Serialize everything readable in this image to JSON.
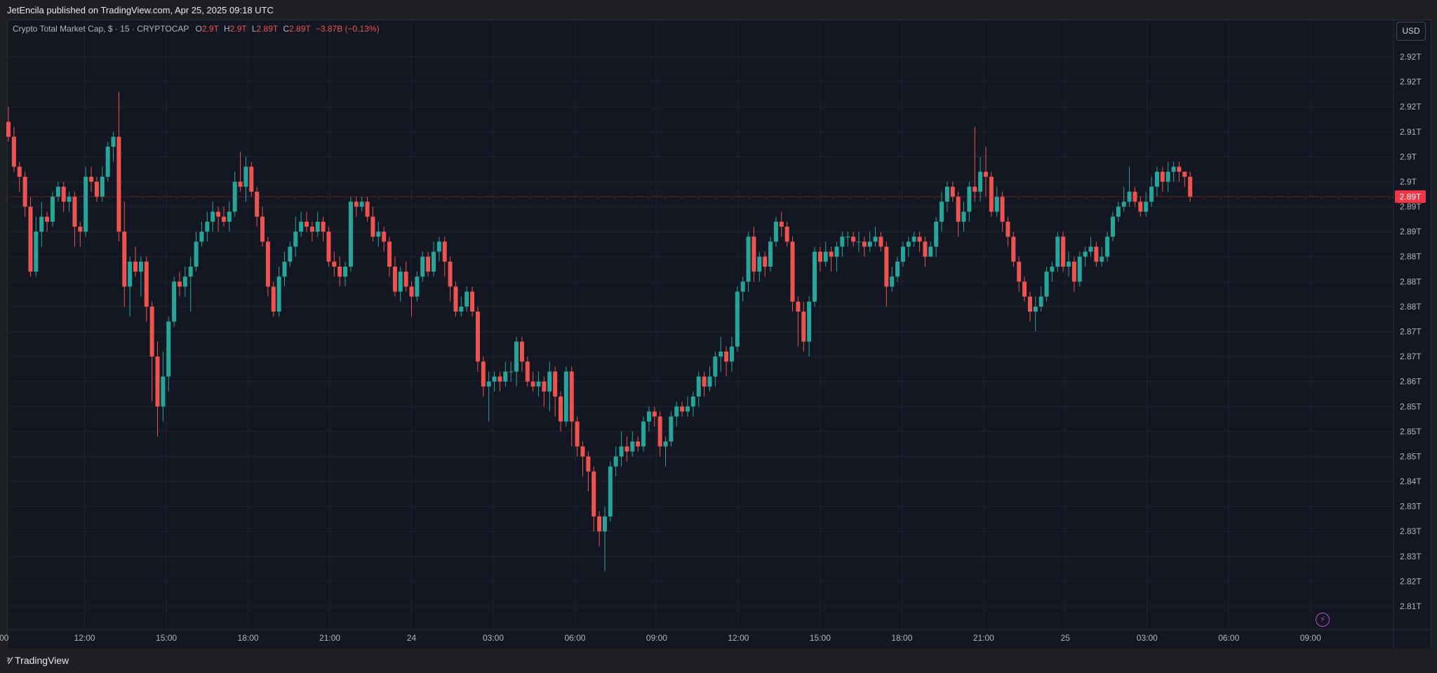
{
  "header": {
    "publisher_text": "JetEncila published on TradingView.com, Apr 25, 2025 09:18 UTC"
  },
  "legend": {
    "symbol": "Crypto Total Market Cap, $ · 15 · CRYPTOCAP",
    "open_label": "O",
    "open_value": "2.9T",
    "high_label": "H",
    "high_value": "2.9T",
    "low_label": "L",
    "low_value": "2.89T",
    "close_label": "C",
    "close_value": "2.89T",
    "change_value": "−3.87B (−0.13%)"
  },
  "currency_button": "USD",
  "brand": {
    "name": "TradingView"
  },
  "colors": {
    "up": "#26a69a",
    "down": "#ef5350",
    "background": "#131722",
    "grid": "#1f2430",
    "axis_text": "#b2b5be",
    "last_price": "#f23645"
  },
  "icons": {
    "flash": "lightning-icon",
    "logo": "tradingview-logo-icon"
  },
  "chart_data": {
    "type": "candlestick",
    "interval": "15",
    "x_tick_labels": [
      ":00",
      "12:00",
      "15:00",
      "18:00",
      "21:00",
      "24",
      "03:00",
      "06:00",
      "09:00",
      "12:00",
      "15:00",
      "18:00",
      "21:00",
      "25",
      "03:00",
      "06:00",
      "09:00"
    ],
    "y_tick_labels": [
      "2.92T",
      "2.92T",
      "2.92T",
      "2.91T",
      "2.9T",
      "2.9T",
      "2.89T",
      "2.89T",
      "2.88T",
      "2.88T",
      "2.88T",
      "2.87T",
      "2.87T",
      "2.86T",
      "2.85T",
      "2.85T",
      "2.85T",
      "2.84T",
      "2.83T",
      "2.83T",
      "2.83T",
      "2.82T",
      "2.81T"
    ],
    "y_tick_values": [
      2.9225,
      2.9175,
      2.9125,
      2.9075,
      2.9025,
      2.8975,
      2.8925,
      2.8875,
      2.8825,
      2.8775,
      2.8725,
      2.8675,
      2.8625,
      2.8575,
      2.8525,
      2.8475,
      2.8425,
      2.8375,
      2.8325,
      2.8275,
      2.8225,
      2.8175,
      2.8125
    ],
    "last_price_label": "2.89T",
    "last_price_value": 2.8945,
    "candles": [
      [
        2.9095,
        2.9065,
        2.9125,
        2.9055
      ],
      [
        2.9065,
        2.9005,
        2.9085,
        2.8995
      ],
      [
        2.9005,
        2.8985,
        2.9015,
        2.8955
      ],
      [
        2.8985,
        2.8925,
        2.8995,
        2.8905
      ],
      [
        2.8925,
        2.8795,
        2.8945,
        2.8785
      ],
      [
        2.8795,
        2.8875,
        2.8905,
        2.8785
      ],
      [
        2.8875,
        2.8905,
        2.8935,
        2.8845
      ],
      [
        2.8905,
        2.8895,
        2.8915,
        2.8875
      ],
      [
        2.8895,
        2.8945,
        2.8955,
        2.8885
      ],
      [
        2.8945,
        2.8965,
        2.8975,
        2.8935
      ],
      [
        2.8965,
        2.8935,
        2.8975,
        2.8915
      ],
      [
        2.8935,
        2.8945,
        2.8955,
        2.8915
      ],
      [
        2.8945,
        2.8885,
        2.8955,
        2.8845
      ],
      [
        2.8885,
        2.8875,
        2.8895,
        2.8845
      ],
      [
        2.8875,
        2.8985,
        2.9005,
        2.8865
      ],
      [
        2.8985,
        2.8975,
        2.9005,
        2.8955
      ],
      [
        2.8975,
        2.8945,
        2.8985,
        2.8935
      ],
      [
        2.8945,
        2.8985,
        2.9005,
        2.8935
      ],
      [
        2.8985,
        2.9045,
        2.9055,
        2.8975
      ],
      [
        2.9045,
        2.9065,
        2.9075,
        2.9015
      ],
      [
        2.9065,
        2.8875,
        2.9155,
        2.8855
      ],
      [
        2.8875,
        2.8765,
        2.8935,
        2.8725
      ],
      [
        2.8765,
        2.8815,
        2.8825,
        2.8705
      ],
      [
        2.8815,
        2.8795,
        2.8845,
        2.8785
      ],
      [
        2.8795,
        2.8815,
        2.8825,
        2.8745
      ],
      [
        2.8815,
        2.8725,
        2.8825,
        2.8695
      ],
      [
        2.8725,
        2.8625,
        2.8735,
        2.8535
      ],
      [
        2.8625,
        2.8525,
        2.8655,
        2.8465
      ],
      [
        2.8525,
        2.8585,
        2.8635,
        2.8495
      ],
      [
        2.8585,
        2.8695,
        2.8705,
        2.8555
      ],
      [
        2.8695,
        2.8775,
        2.8785,
        2.8685
      ],
      [
        2.8775,
        2.8765,
        2.8795,
        2.8745
      ],
      [
        2.8765,
        2.8785,
        2.8805,
        2.8745
      ],
      [
        2.8785,
        2.8805,
        2.8825,
        2.8715
      ],
      [
        2.8805,
        2.8855,
        2.8875,
        2.8795
      ],
      [
        2.8855,
        2.8875,
        2.8895,
        2.8845
      ],
      [
        2.8875,
        2.8895,
        2.8915,
        2.8855
      ],
      [
        2.8895,
        2.8915,
        2.8935,
        2.8875
      ],
      [
        2.8915,
        2.8905,
        2.8925,
        2.8875
      ],
      [
        2.8905,
        2.8895,
        2.8925,
        2.8885
      ],
      [
        2.8895,
        2.8915,
        2.8935,
        2.8875
      ],
      [
        2.8915,
        2.8975,
        2.8995,
        2.8905
      ],
      [
        2.8975,
        2.8965,
        2.9035,
        2.8955
      ],
      [
        2.8965,
        2.9005,
        2.9025,
        2.8935
      ],
      [
        2.9005,
        2.8955,
        2.9015,
        2.8945
      ],
      [
        2.8955,
        2.8905,
        2.8965,
        2.8885
      ],
      [
        2.8905,
        2.8855,
        2.8925,
        2.8845
      ],
      [
        2.8855,
        2.8765,
        2.8865,
        2.8745
      ],
      [
        2.8765,
        2.8715,
        2.8775,
        2.8705
      ],
      [
        2.8715,
        2.8785,
        2.8805,
        2.8705
      ],
      [
        2.8785,
        2.8815,
        2.8835,
        2.8765
      ],
      [
        2.8815,
        2.8845,
        2.8855,
        2.8805
      ],
      [
        2.8845,
        2.8875,
        2.8905,
        2.8825
      ],
      [
        2.8875,
        2.8895,
        2.8915,
        2.8865
      ],
      [
        2.8895,
        2.8885,
        2.8915,
        2.8875
      ],
      [
        2.8885,
        2.8875,
        2.8895,
        2.8855
      ],
      [
        2.8875,
        2.8895,
        2.8915,
        2.8865
      ],
      [
        2.8895,
        2.8875,
        2.8905,
        2.8855
      ],
      [
        2.8875,
        2.8815,
        2.8885,
        2.8805
      ],
      [
        2.8815,
        2.8805,
        2.8835,
        2.8785
      ],
      [
        2.8805,
        2.8785,
        2.8825,
        2.8765
      ],
      [
        2.8785,
        2.8805,
        2.8815,
        2.8765
      ],
      [
        2.8805,
        2.8935,
        2.8945,
        2.8795
      ],
      [
        2.8935,
        2.8925,
        2.8945,
        2.8905
      ],
      [
        2.8925,
        2.8935,
        2.8945,
        2.8915
      ],
      [
        2.8935,
        2.8905,
        2.8945,
        2.8895
      ],
      [
        2.8905,
        2.8865,
        2.8925,
        2.8855
      ],
      [
        2.8865,
        2.8875,
        2.8895,
        2.8845
      ],
      [
        2.8875,
        2.8855,
        2.8885,
        2.8835
      ],
      [
        2.8855,
        2.8805,
        2.8865,
        2.8785
      ],
      [
        2.8805,
        2.8755,
        2.8825,
        2.8745
      ],
      [
        2.8755,
        2.8795,
        2.8805,
        2.8735
      ],
      [
        2.8795,
        2.8765,
        2.8815,
        2.8755
      ],
      [
        2.8765,
        2.8745,
        2.8775,
        2.8705
      ],
      [
        2.8745,
        2.8785,
        2.8795,
        2.8735
      ],
      [
        2.8785,
        2.8825,
        2.8835,
        2.8775
      ],
      [
        2.8825,
        2.8795,
        2.8835,
        2.8785
      ],
      [
        2.8795,
        2.8835,
        2.8855,
        2.8785
      ],
      [
        2.8835,
        2.8855,
        2.8865,
        2.8815
      ],
      [
        2.8855,
        2.8815,
        2.8865,
        2.8785
      ],
      [
        2.8815,
        2.8765,
        2.8825,
        2.8735
      ],
      [
        2.8765,
        2.8715,
        2.8775,
        2.8705
      ],
      [
        2.8715,
        2.8725,
        2.8745,
        2.8705
      ],
      [
        2.8725,
        2.8755,
        2.8765,
        2.8715
      ],
      [
        2.8755,
        2.8715,
        2.8765,
        2.8705
      ],
      [
        2.8715,
        2.8615,
        2.8725,
        2.8595
      ],
      [
        2.8615,
        2.8565,
        2.8625,
        2.8545
      ],
      [
        2.8565,
        2.8575,
        2.8595,
        2.8495
      ],
      [
        2.8575,
        2.8585,
        2.8595,
        2.8555
      ],
      [
        2.8585,
        2.8575,
        2.8595,
        2.8555
      ],
      [
        2.8575,
        2.8595,
        2.8615,
        2.8565
      ],
      [
        2.8595,
        2.8595,
        2.8615,
        2.8575
      ],
      [
        2.8595,
        2.8655,
        2.8665,
        2.8565
      ],
      [
        2.8655,
        2.8615,
        2.8665,
        2.8595
      ],
      [
        2.8615,
        2.8575,
        2.8625,
        2.8565
      ],
      [
        2.8575,
        2.8565,
        2.8595,
        2.8555
      ],
      [
        2.8565,
        2.8575,
        2.8595,
        2.8545
      ],
      [
        2.8575,
        2.8555,
        2.8585,
        2.8525
      ],
      [
        2.8555,
        2.8595,
        2.8615,
        2.8515
      ],
      [
        2.8595,
        2.8545,
        2.8605,
        2.8505
      ],
      [
        2.8545,
        2.8495,
        2.8555,
        2.8475
      ],
      [
        2.8495,
        2.8595,
        2.8605,
        2.8485
      ],
      [
        2.8595,
        2.8495,
        2.8605,
        2.8445
      ],
      [
        2.8495,
        2.8445,
        2.8505,
        2.8425
      ],
      [
        2.8445,
        2.8425,
        2.8455,
        2.8385
      ],
      [
        2.8425,
        2.8395,
        2.8435,
        2.8355
      ],
      [
        2.8395,
        2.8305,
        2.8405,
        2.8275
      ],
      [
        2.8305,
        2.8275,
        2.8315,
        2.8245
      ],
      [
        2.8275,
        2.8305,
        2.8325,
        2.8195
      ],
      [
        2.8305,
        2.8405,
        2.8415,
        2.8295
      ],
      [
        2.8405,
        2.8425,
        2.8445,
        2.8385
      ],
      [
        2.8425,
        2.8445,
        2.8475,
        2.8405
      ],
      [
        2.8445,
        2.8435,
        2.8465,
        2.8415
      ],
      [
        2.8435,
        2.8455,
        2.8475,
        2.8425
      ],
      [
        2.8455,
        2.8445,
        2.8465,
        2.8435
      ],
      [
        2.8445,
        2.8495,
        2.8505,
        2.8435
      ],
      [
        2.8495,
        2.8515,
        2.8525,
        2.8475
      ],
      [
        2.8515,
        2.8505,
        2.8525,
        2.8485
      ],
      [
        2.8505,
        2.8445,
        2.8515,
        2.8425
      ],
      [
        2.8445,
        2.8455,
        2.8465,
        2.8405
      ],
      [
        2.8455,
        2.8505,
        2.8515,
        2.8445
      ],
      [
        2.8505,
        2.8525,
        2.8535,
        2.8485
      ],
      [
        2.8525,
        2.8515,
        2.8535,
        2.8505
      ],
      [
        2.8515,
        2.8525,
        2.8545,
        2.8505
      ],
      [
        2.8525,
        2.8545,
        2.8555,
        2.8505
      ],
      [
        2.8545,
        2.8585,
        2.8595,
        2.8525
      ],
      [
        2.8585,
        2.8565,
        2.8595,
        2.8545
      ],
      [
        2.8565,
        2.8585,
        2.8605,
        2.8555
      ],
      [
        2.8585,
        2.8625,
        2.8635,
        2.8565
      ],
      [
        2.8625,
        2.8635,
        2.8665,
        2.8595
      ],
      [
        2.8635,
        2.8615,
        2.8645,
        2.8585
      ],
      [
        2.8615,
        2.8645,
        2.8665,
        2.8595
      ],
      [
        2.8645,
        2.8755,
        2.8765,
        2.8635
      ],
      [
        2.8755,
        2.8775,
        2.8785,
        2.8735
      ],
      [
        2.8775,
        2.8865,
        2.8875,
        2.8755
      ],
      [
        2.8865,
        2.8795,
        2.8885,
        2.8775
      ],
      [
        2.8795,
        2.8825,
        2.8835,
        2.8775
      ],
      [
        2.8825,
        2.8805,
        2.8835,
        2.8785
      ],
      [
        2.8805,
        2.8855,
        2.8865,
        2.8795
      ],
      [
        2.8855,
        2.8895,
        2.8905,
        2.8845
      ],
      [
        2.8895,
        2.8885,
        2.8915,
        2.8865
      ],
      [
        2.8885,
        2.8855,
        2.8895,
        2.8845
      ],
      [
        2.8855,
        2.8735,
        2.8865,
        2.8715
      ],
      [
        2.8735,
        2.8715,
        2.8745,
        2.8645
      ],
      [
        2.8715,
        2.8655,
        2.8735,
        2.8635
      ],
      [
        2.8655,
        2.8735,
        2.8745,
        2.8625
      ],
      [
        2.8735,
        2.8835,
        2.8845,
        2.8725
      ],
      [
        2.8835,
        2.8815,
        2.8845,
        2.8795
      ],
      [
        2.8815,
        2.8835,
        2.8855,
        2.8805
      ],
      [
        2.8835,
        2.8825,
        2.8845,
        2.8795
      ],
      [
        2.8825,
        2.8845,
        2.8855,
        2.8795
      ],
      [
        2.8845,
        2.8865,
        2.8875,
        2.8825
      ],
      [
        2.8865,
        2.8865,
        2.8875,
        2.8845
      ],
      [
        2.8865,
        2.8855,
        2.8875,
        2.8845
      ],
      [
        2.8855,
        2.8855,
        2.8875,
        2.8835
      ],
      [
        2.8855,
        2.8845,
        2.8865,
        2.8825
      ],
      [
        2.8845,
        2.8855,
        2.8875,
        2.8835
      ],
      [
        2.8855,
        2.8865,
        2.8885,
        2.8845
      ],
      [
        2.8865,
        2.8845,
        2.8875,
        2.8835
      ],
      [
        2.8845,
        2.8765,
        2.8855,
        2.8725
      ],
      [
        2.8765,
        2.8785,
        2.8805,
        2.8755
      ],
      [
        2.8785,
        2.8815,
        2.8825,
        2.8775
      ],
      [
        2.8815,
        2.8845,
        2.8855,
        2.8805
      ],
      [
        2.8845,
        2.8855,
        2.8865,
        2.8825
      ],
      [
        2.8855,
        2.8865,
        2.8875,
        2.8845
      ],
      [
        2.8865,
        2.8855,
        2.8875,
        2.8835
      ],
      [
        2.8855,
        2.8825,
        2.8865,
        2.8805
      ],
      [
        2.8825,
        2.8845,
        2.8855,
        2.8825
      ],
      [
        2.8845,
        2.8895,
        2.8905,
        2.8825
      ],
      [
        2.8895,
        2.8935,
        2.8955,
        2.8875
      ],
      [
        2.8935,
        2.8965,
        2.8975,
        2.8915
      ],
      [
        2.8965,
        2.8945,
        2.8975,
        2.8935
      ],
      [
        2.8945,
        2.8895,
        2.8955,
        2.8865
      ],
      [
        2.8895,
        2.8915,
        2.8935,
        2.8875
      ],
      [
        2.8915,
        2.8965,
        2.8975,
        2.8895
      ],
      [
        2.8965,
        2.8955,
        2.9085,
        2.8935
      ],
      [
        2.8955,
        2.8995,
        2.9025,
        2.8935
      ],
      [
        2.8995,
        2.8985,
        2.9045,
        2.8945
      ],
      [
        2.8985,
        2.8915,
        2.8995,
        2.8905
      ],
      [
        2.8915,
        2.8945,
        2.8965,
        2.8905
      ],
      [
        2.8945,
        2.8895,
        2.8955,
        2.8875
      ],
      [
        2.8895,
        2.8865,
        2.8905,
        2.8845
      ],
      [
        2.8865,
        2.8815,
        2.8875,
        2.8805
      ],
      [
        2.8815,
        2.8775,
        2.8825,
        2.8755
      ],
      [
        2.8775,
        2.8745,
        2.8785,
        2.8735
      ],
      [
        2.8745,
        2.8715,
        2.8755,
        2.8695
      ],
      [
        2.8715,
        2.8725,
        2.8745,
        2.8675
      ],
      [
        2.8725,
        2.8745,
        2.8765,
        2.8715
      ],
      [
        2.8745,
        2.8795,
        2.8805,
        2.8735
      ],
      [
        2.8795,
        2.8805,
        2.8815,
        2.8775
      ],
      [
        2.8805,
        2.8865,
        2.8875,
        2.8795
      ],
      [
        2.8865,
        2.8805,
        2.8875,
        2.8795
      ],
      [
        2.8805,
        2.8815,
        2.8835,
        2.8785
      ],
      [
        2.8815,
        2.8775,
        2.8825,
        2.8755
      ],
      [
        2.8775,
        2.8825,
        2.8835,
        2.8765
      ],
      [
        2.8825,
        2.8835,
        2.8845,
        2.8805
      ],
      [
        2.8835,
        2.8845,
        2.8865,
        2.8825
      ],
      [
        2.8845,
        2.8815,
        2.8855,
        2.8805
      ],
      [
        2.8815,
        2.8825,
        2.8845,
        2.8805
      ],
      [
        2.8825,
        2.8865,
        2.8875,
        2.8815
      ],
      [
        2.8865,
        2.8905,
        2.8915,
        2.8855
      ],
      [
        2.8905,
        2.8925,
        2.8935,
        2.8895
      ],
      [
        2.8925,
        2.8935,
        2.8965,
        2.8915
      ],
      [
        2.8935,
        2.8955,
        2.9005,
        2.8925
      ],
      [
        2.8955,
        2.8935,
        2.8965,
        2.8925
      ],
      [
        2.8935,
        2.8915,
        2.8945,
        2.8905
      ],
      [
        2.8915,
        2.8935,
        2.8955,
        2.8905
      ],
      [
        2.8935,
        2.8965,
        2.8985,
        2.8925
      ],
      [
        2.8965,
        2.8995,
        2.9005,
        2.8945
      ],
      [
        2.8995,
        2.8975,
        2.9005,
        2.8955
      ],
      [
        2.8975,
        2.8995,
        2.9015,
        2.8955
      ],
      [
        2.8995,
        2.9005,
        2.9015,
        2.8975
      ],
      [
        2.9005,
        2.8995,
        2.9015,
        2.8975
      ],
      [
        2.8995,
        2.8985,
        2.8995,
        2.8965
      ],
      [
        2.8985,
        2.8945,
        2.8995,
        2.8935
      ]
    ]
  }
}
